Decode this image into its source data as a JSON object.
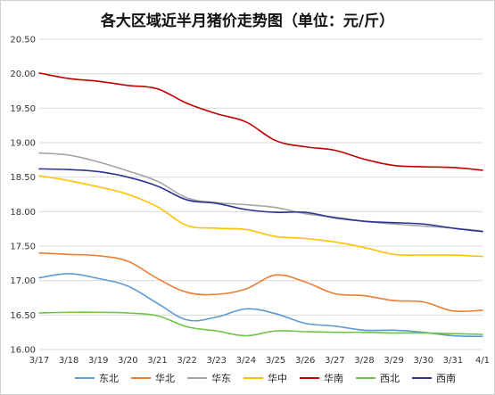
{
  "chart_data": {
    "type": "line",
    "title": "各大区域近半月猪价走势图（单位：元/斤）",
    "xlabel": "",
    "ylabel": "",
    "ylim": [
      16.0,
      20.5
    ],
    "yticks": [
      20.5,
      20.0,
      19.5,
      19.0,
      18.5,
      18.0,
      17.5,
      17.0,
      16.5,
      16.0
    ],
    "ytick_labels": [
      "20.50",
      "20.00",
      "19.50",
      "19.00",
      "18.50",
      "18.00",
      "17.50",
      "17.00",
      "16.50",
      "16.00"
    ],
    "categories": [
      "3/17",
      "3/18",
      "3/19",
      "3/20",
      "3/21",
      "3/22",
      "3/23",
      "3/24",
      "3/25",
      "3/26",
      "3/27",
      "3/28",
      "3/29",
      "3/30",
      "3/31",
      "4/1"
    ],
    "grid": true,
    "legend_position": "bottom",
    "series": [
      {
        "name": "东北",
        "color": "#5b9bd5",
        "values": [
          17.04,
          17.1,
          17.03,
          16.92,
          16.67,
          16.43,
          16.47,
          16.59,
          16.52,
          16.38,
          16.34,
          16.28,
          16.28,
          16.25,
          16.2,
          16.19
        ]
      },
      {
        "name": "华北",
        "color": "#ed7d31",
        "values": [
          17.4,
          17.38,
          17.36,
          17.28,
          17.03,
          16.83,
          16.8,
          16.88,
          17.08,
          16.98,
          16.81,
          16.78,
          16.71,
          16.69,
          16.56,
          16.57
        ]
      },
      {
        "name": "华东",
        "color": "#a5a5a5",
        "values": [
          18.85,
          18.82,
          18.72,
          18.59,
          18.44,
          18.2,
          18.13,
          18.1,
          18.06,
          17.97,
          17.92,
          17.86,
          17.82,
          17.79,
          17.76,
          17.72
        ]
      },
      {
        "name": "华中",
        "color": "#ffc000",
        "values": [
          18.52,
          18.45,
          18.36,
          18.25,
          18.07,
          17.8,
          17.76,
          17.74,
          17.64,
          17.61,
          17.56,
          17.48,
          17.38,
          17.37,
          17.37,
          17.35
        ]
      },
      {
        "name": "华南",
        "color": "#c00000",
        "values": [
          20.01,
          19.93,
          19.89,
          19.83,
          19.78,
          19.57,
          19.42,
          19.3,
          19.03,
          18.94,
          18.89,
          18.76,
          18.67,
          18.65,
          18.64,
          18.6
        ]
      },
      {
        "name": "西北",
        "color": "#70c447",
        "values": [
          16.53,
          16.54,
          16.54,
          16.53,
          16.49,
          16.33,
          16.27,
          16.2,
          16.27,
          16.26,
          16.25,
          16.25,
          16.24,
          16.24,
          16.23,
          16.22
        ]
      },
      {
        "name": "西南",
        "color": "#2e3192",
        "values": [
          18.62,
          18.61,
          18.58,
          18.5,
          18.37,
          18.17,
          18.12,
          18.03,
          17.99,
          17.99,
          17.91,
          17.86,
          17.84,
          17.82,
          17.76,
          17.71
        ]
      }
    ]
  }
}
